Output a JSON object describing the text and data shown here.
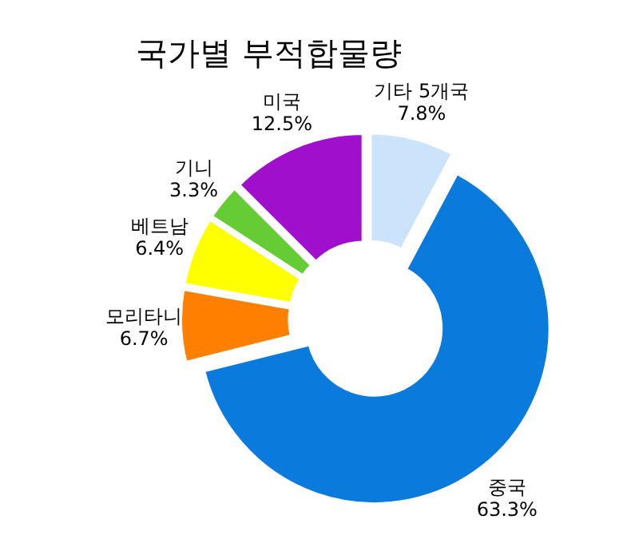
{
  "chart_data": {
    "type": "donut",
    "title": "국가별 부적합물량",
    "categories": [
      "기타 5개국",
      "중국",
      "모리타니",
      "베트남",
      "기니",
      "미국"
    ],
    "values": [
      7.8,
      63.3,
      6.7,
      6.4,
      3.3,
      12.5
    ],
    "value_labels": [
      "7.8%",
      "63.3%",
      "6.7%",
      "6.4%",
      "3.3%",
      "12.5%"
    ],
    "colors": [
      "#cce4fb",
      "#0a7bdc",
      "#ff8000",
      "#ffff00",
      "#66cc33",
      "#a010cc"
    ]
  }
}
